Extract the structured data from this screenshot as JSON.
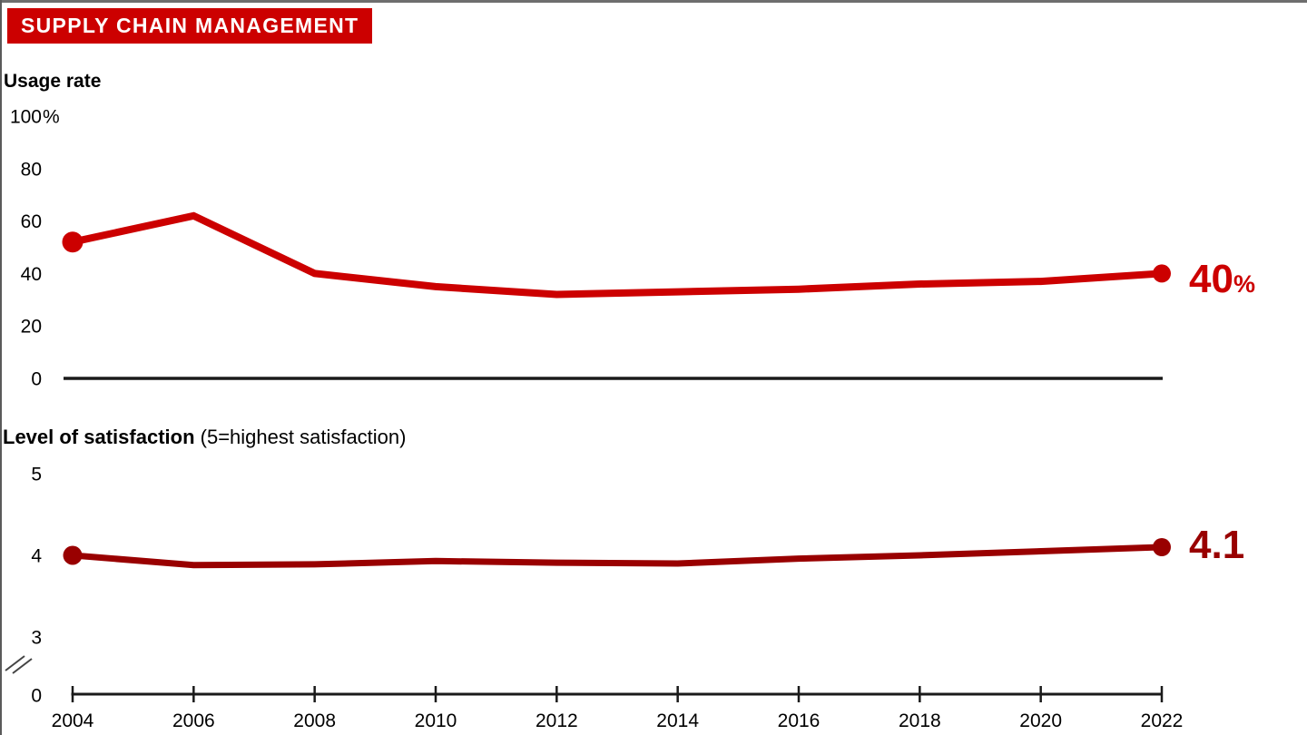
{
  "title": "SUPPLY CHAIN MANAGEMENT",
  "colors": {
    "banner": "#CC0000",
    "usage_line": "#CC0000",
    "satisfaction_line": "#990000",
    "axis": "#1A1A1A"
  },
  "usage_chart": {
    "heading": "Usage rate",
    "yticks": [
      "100%",
      "80",
      "60",
      "40",
      "20",
      "0"
    ],
    "end_label_value": "40",
    "end_label_unit": "%"
  },
  "satisfaction_chart": {
    "heading_bold": "Level of satisfaction",
    "heading_note": "(5=highest satisfaction)",
    "yticks": [
      "5",
      "4",
      "3",
      "0"
    ],
    "end_label": "4.1",
    "axis_break": true
  },
  "chart_data": [
    {
      "type": "line",
      "title": "Usage rate",
      "unit": "%",
      "categories": [
        2004,
        2006,
        2008,
        2010,
        2012,
        2014,
        2016,
        2018,
        2020,
        2022
      ],
      "values": [
        52,
        62,
        40,
        35,
        32,
        33,
        34,
        36,
        37,
        40
      ],
      "ylim": [
        0,
        100
      ],
      "ytick_values": [
        100,
        80,
        60,
        40,
        20,
        0
      ],
      "end_label": "40%",
      "line_color": "#CC0000",
      "grid": false,
      "legend": "none"
    },
    {
      "type": "line",
      "title": "Level of satisfaction (5=highest satisfaction)",
      "categories": [
        2004,
        2006,
        2008,
        2010,
        2012,
        2014,
        2016,
        2018,
        2020,
        2022
      ],
      "values": [
        4.0,
        3.88,
        3.89,
        3.93,
        3.91,
        3.9,
        3.96,
        4.0,
        4.05,
        4.1
      ],
      "ylim": [
        3,
        5
      ],
      "ytick_values": [
        5,
        4,
        3,
        0
      ],
      "axis_break_to_zero": true,
      "end_label": "4.1",
      "line_color": "#990000",
      "grid": false,
      "legend": "none"
    }
  ]
}
